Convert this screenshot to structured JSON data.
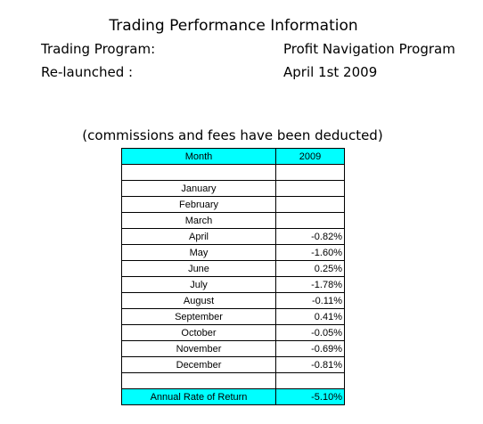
{
  "title": "Trading Performance Information",
  "info": {
    "program_label": "Trading Program:",
    "program_value": "Profit Navigation Program",
    "relaunch_label": "Re-launched :",
    "relaunch_value": "April 1st 2009"
  },
  "note": "(commissions and fees have been deducted)",
  "table": {
    "header": {
      "month": "Month",
      "year": "2009"
    },
    "rows": [
      {
        "month": "January",
        "value": ""
      },
      {
        "month": "February",
        "value": ""
      },
      {
        "month": "March",
        "value": ""
      },
      {
        "month": "April",
        "value": "-0.82%"
      },
      {
        "month": "May",
        "value": "-1.60%"
      },
      {
        "month": "June",
        "value": "0.25%"
      },
      {
        "month": "July",
        "value": "-1.78%"
      },
      {
        "month": "August",
        "value": "-0.11%"
      },
      {
        "month": "September",
        "value": "0.41%"
      },
      {
        "month": "October",
        "value": "-0.05%"
      },
      {
        "month": "November",
        "value": "-0.69%"
      },
      {
        "month": "December",
        "value": "-0.81%"
      }
    ],
    "total": {
      "label": "Annual Rate of Return",
      "value": "-5.10%"
    }
  },
  "colors": {
    "header_bg": "#00ffff",
    "border": "#000000"
  }
}
